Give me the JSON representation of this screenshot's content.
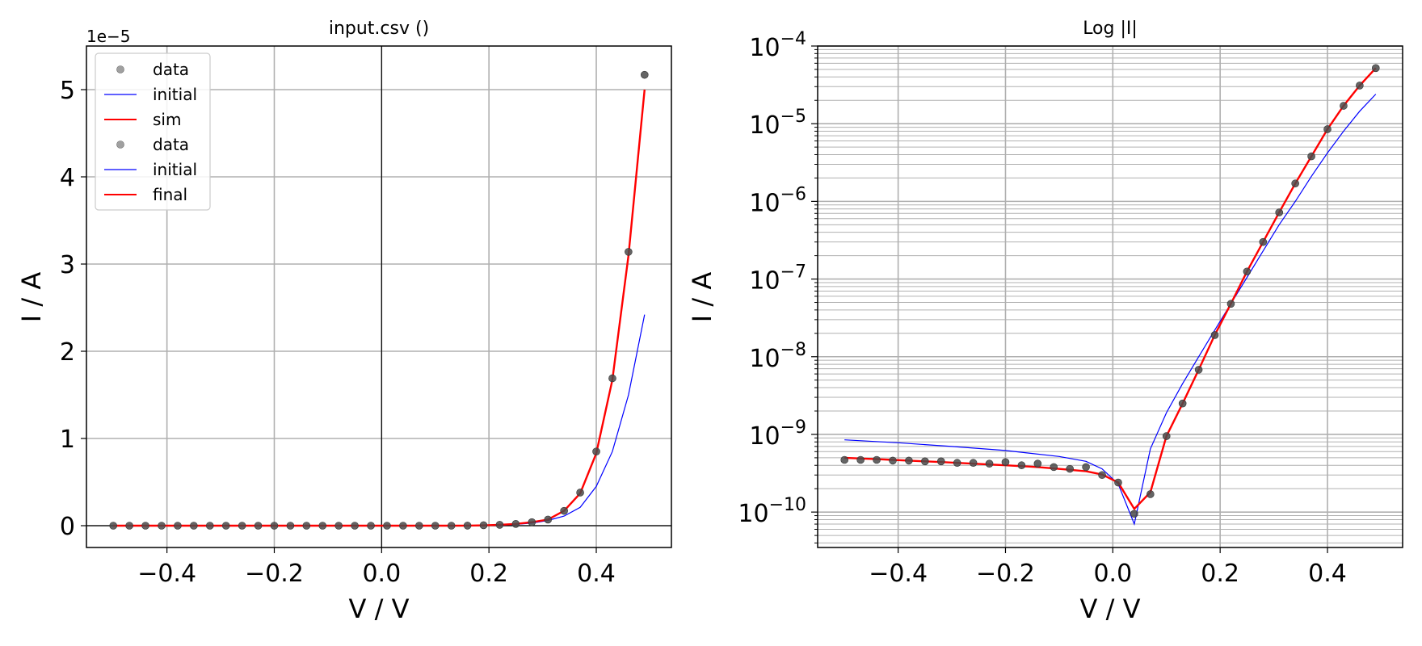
{
  "chart_data": [
    {
      "type": "line",
      "title": "input.csv ()",
      "xlabel": "V / V",
      "ylabel": "I / A",
      "y_offset_label": "1e−5",
      "xlim": [
        -0.55,
        0.54
      ],
      "ylim": [
        -0.25,
        5.5
      ],
      "y_scale_factor": 1e-05,
      "x_ticks": [
        -0.4,
        -0.2,
        0.0,
        0.2,
        0.4
      ],
      "x_tick_labels": [
        "−0.4",
        "−0.2",
        "0.0",
        "0.2",
        "0.4"
      ],
      "y_ticks": [
        0,
        1,
        2,
        3,
        4,
        5
      ],
      "y_tick_labels": [
        "0",
        "1",
        "2",
        "3",
        "4",
        "5"
      ],
      "grid": true,
      "legend_position": "top-left",
      "legend": [
        "data",
        "initial",
        "sim",
        "data",
        "initial",
        "final"
      ],
      "x": [
        -0.5,
        -0.47,
        -0.44,
        -0.41,
        -0.38,
        -0.35,
        -0.32,
        -0.29,
        -0.26,
        -0.23,
        -0.2,
        -0.17,
        -0.14,
        -0.11,
        -0.08,
        -0.05,
        -0.02,
        0.01,
        0.04,
        0.07,
        0.1,
        0.13,
        0.16,
        0.19,
        0.22,
        0.25,
        0.28,
        0.31,
        0.34,
        0.37,
        0.4,
        0.43,
        0.46,
        0.49
      ],
      "series": [
        {
          "name": "data",
          "kind": "points",
          "color": "#555555",
          "values": [
            0,
            0,
            0,
            0,
            0,
            0,
            0,
            0,
            0,
            0,
            0,
            0,
            0,
            0,
            0,
            0,
            0,
            0,
            0,
            0,
            0,
            0,
            0.001,
            0.005,
            0.01,
            0.02,
            0.04,
            0.07,
            0.17,
            0.38,
            0.85,
            1.69,
            3.14,
            5.17
          ]
        },
        {
          "name": "initial",
          "kind": "line",
          "color": "#0000ff",
          "values": [
            0,
            0,
            0,
            0,
            0,
            0,
            0,
            0,
            0,
            0,
            0,
            0,
            0,
            0,
            0,
            0,
            0,
            0,
            0,
            0,
            0,
            0,
            0.001,
            0.003,
            0.006,
            0.015,
            0.03,
            0.06,
            0.11,
            0.21,
            0.45,
            0.85,
            1.5,
            2.42
          ]
        },
        {
          "name": "final",
          "kind": "line",
          "color": "#ff0000",
          "values": [
            0,
            0,
            0,
            0,
            0,
            0,
            0,
            0,
            0,
            0,
            0,
            0,
            0,
            0,
            0,
            0,
            0,
            0,
            0,
            0,
            0,
            0,
            0.001,
            0.004,
            0.01,
            0.02,
            0.04,
            0.07,
            0.17,
            0.37,
            0.83,
            1.67,
            3.1,
            5.0
          ]
        }
      ]
    },
    {
      "type": "line",
      "title": "Log |I|",
      "xlabel": "V / V",
      "ylabel": "I / A",
      "y_scale": "log",
      "xlim": [
        -0.55,
        0.54
      ],
      "ylim": [
        3.5e-11,
        0.0001
      ],
      "x_ticks": [
        -0.4,
        -0.2,
        0.0,
        0.2,
        0.4
      ],
      "x_tick_labels": [
        "−0.4",
        "−0.2",
        "0.0",
        "0.2",
        "0.4"
      ],
      "y_ticks_exponent": [
        -10,
        -9,
        -8,
        -7,
        -6,
        -5,
        -4
      ],
      "y_tick_base": "10",
      "y_tick_exponent_labels": [
        "−10",
        "−9",
        "−8",
        "−7",
        "−6",
        "−5",
        "−4"
      ],
      "grid": true,
      "x": [
        -0.5,
        -0.47,
        -0.44,
        -0.41,
        -0.38,
        -0.35,
        -0.32,
        -0.29,
        -0.26,
        -0.23,
        -0.2,
        -0.17,
        -0.14,
        -0.11,
        -0.08,
        -0.05,
        -0.02,
        0.01,
        0.04,
        0.07,
        0.1,
        0.13,
        0.16,
        0.19,
        0.22,
        0.25,
        0.28,
        0.31,
        0.34,
        0.37,
        0.4,
        0.43,
        0.46,
        0.49
      ],
      "series": [
        {
          "name": "data",
          "kind": "points",
          "color": "#555555",
          "values": [
            4.7e-10,
            4.7e-10,
            4.7e-10,
            4.6e-10,
            4.6e-10,
            4.5e-10,
            4.5e-10,
            4.3e-10,
            4.3e-10,
            4.2e-10,
            4.4e-10,
            4e-10,
            4.2e-10,
            3.8e-10,
            3.6e-10,
            3.8e-10,
            3e-10,
            2.4e-10,
            9.5e-11,
            1.7e-10,
            9.5e-10,
            2.5e-09,
            6.8e-09,
            1.9e-08,
            4.8e-08,
            1.25e-07,
            3e-07,
            7.2e-07,
            1.7e-06,
            3.8e-06,
            8.5e-06,
            1.7e-05,
            3.1e-05,
            5.2e-05
          ]
        },
        {
          "name": "initial",
          "kind": "line",
          "color": "#0000ff",
          "x": [
            -0.5,
            -0.4,
            -0.3,
            -0.2,
            -0.1,
            -0.05,
            -0.02,
            0.01,
            0.04,
            0.07,
            0.1,
            0.13,
            0.16,
            0.19,
            0.22,
            0.25,
            0.28,
            0.31,
            0.34,
            0.37,
            0.4,
            0.43,
            0.46,
            0.49
          ],
          "values": [
            8.5e-10,
            7.8e-10,
            7e-10,
            6.2e-10,
            5.2e-10,
            4.5e-10,
            3.6e-10,
            2.3e-10,
            7e-11,
            6.5e-10,
            1.9e-09,
            4.5e-09,
            1e-08,
            2.2e-08,
            4.8e-08,
            1.05e-07,
            2.3e-07,
            5e-07,
            1e-06,
            2.1e-06,
            4.2e-06,
            8e-06,
            1.45e-05,
            2.4e-05
          ]
        },
        {
          "name": "final",
          "kind": "line",
          "color": "#ff0000",
          "values": [
            5e-10,
            4.9e-10,
            4.8e-10,
            4.7e-10,
            4.6e-10,
            4.5e-10,
            4.4e-10,
            4.3e-10,
            4.2e-10,
            4.1e-10,
            4e-10,
            3.9e-10,
            3.8e-10,
            3.65e-10,
            3.5e-10,
            3.35e-10,
            3.05e-10,
            2.4e-10,
            1.1e-10,
            1.8e-10,
            9.5e-10,
            2.5e-09,
            6.8e-09,
            1.9e-08,
            4.8e-08,
            1.25e-07,
            3e-07,
            7.2e-07,
            1.7e-06,
            3.8e-06,
            8.5e-06,
            1.7e-05,
            3.1e-05,
            5.2e-05
          ]
        }
      ]
    }
  ]
}
